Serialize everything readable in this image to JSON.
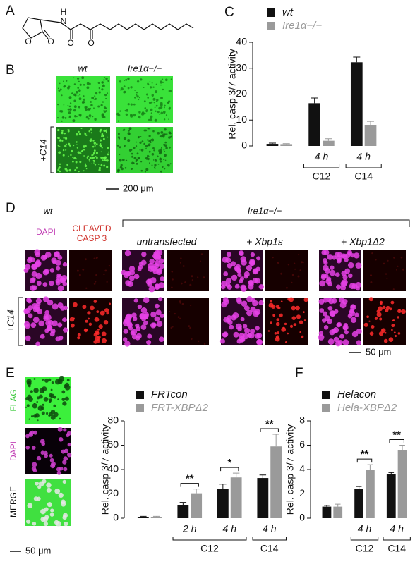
{
  "molecule": {
    "panel": "A",
    "atoms": [
      "H",
      "N",
      "O",
      "O",
      "O"
    ]
  },
  "images_b": {
    "panel": "B",
    "columns": [
      "wt",
      "Ire1α−/−"
    ],
    "row_label": "+C14",
    "scale": "200 μm"
  },
  "images_d": {
    "panel": "D",
    "group_wt": "wt",
    "group_ko": "Ire1α−/−",
    "stains": [
      "DAPI",
      "CLEAVED",
      "CASP 3"
    ],
    "conditions": [
      "untransfected",
      "+ Xbp1s",
      "+ Xbp1Δ2"
    ],
    "row_label": "+C14",
    "scale": "50 μm"
  },
  "images_e": {
    "labels": [
      "FLAG",
      "DAPI",
      "MERGE"
    ],
    "scale": "50 μm"
  },
  "chart_data": [
    {
      "type": "bar",
      "panel": "C",
      "ylabel": "Rel. casp 3/7 activity",
      "categories": [
        null,
        "4 h",
        "4 h"
      ],
      "groups": [
        null,
        "C12",
        "C14"
      ],
      "series": [
        {
          "name": "wt",
          "color": "#111111",
          "values": [
            0.8,
            16.5,
            32.3
          ],
          "errors": [
            0.3,
            2.0,
            2.0
          ]
        },
        {
          "name": "Ire1α−/−",
          "color": "#9a9a9a",
          "values": [
            0.7,
            2.0,
            8.0
          ],
          "errors": [
            0.2,
            0.8,
            1.5
          ]
        }
      ],
      "ylim": [
        0,
        40
      ],
      "yticks": [
        0,
        10,
        20,
        30,
        40
      ]
    },
    {
      "type": "bar",
      "panel": "E",
      "ylabel": "Rel. casp 3/7 activity",
      "categories": [
        null,
        "2 h",
        "4 h",
        "4 h"
      ],
      "groups": [
        null,
        "C12",
        "C12",
        "C14"
      ],
      "significance": [
        null,
        "**",
        "*",
        "**"
      ],
      "series": [
        {
          "name": "FRTcon",
          "color": "#111111",
          "values": [
            1,
            10.5,
            24,
            33
          ],
          "errors": [
            0.5,
            2.5,
            4,
            2.5
          ]
        },
        {
          "name": "FRT-XBPΔ2",
          "color": "#9a9a9a",
          "values": [
            1,
            20.5,
            33.5,
            59
          ],
          "errors": [
            0.5,
            3.5,
            3.5,
            10
          ]
        }
      ],
      "ylim": [
        0,
        80
      ],
      "yticks": [
        0,
        20,
        40,
        60,
        80
      ]
    },
    {
      "type": "bar",
      "panel": "F",
      "ylabel": "Rel. casp 3/7 activity",
      "categories": [
        null,
        "4 h",
        "4 h"
      ],
      "groups": [
        null,
        "C12",
        "C14"
      ],
      "significance": [
        null,
        "**",
        "**"
      ],
      "series": [
        {
          "name": "Helacon",
          "color": "#111111",
          "values": [
            0.95,
            2.4,
            3.6
          ],
          "errors": [
            0.1,
            0.2,
            0.15
          ]
        },
        {
          "name": "Hela-XBPΔ2",
          "color": "#9a9a9a",
          "values": [
            0.95,
            4.0,
            5.6
          ],
          "errors": [
            0.2,
            0.4,
            0.4
          ]
        }
      ],
      "ylim": [
        0,
        8
      ],
      "yticks": [
        0,
        2,
        4,
        6,
        8
      ]
    }
  ]
}
